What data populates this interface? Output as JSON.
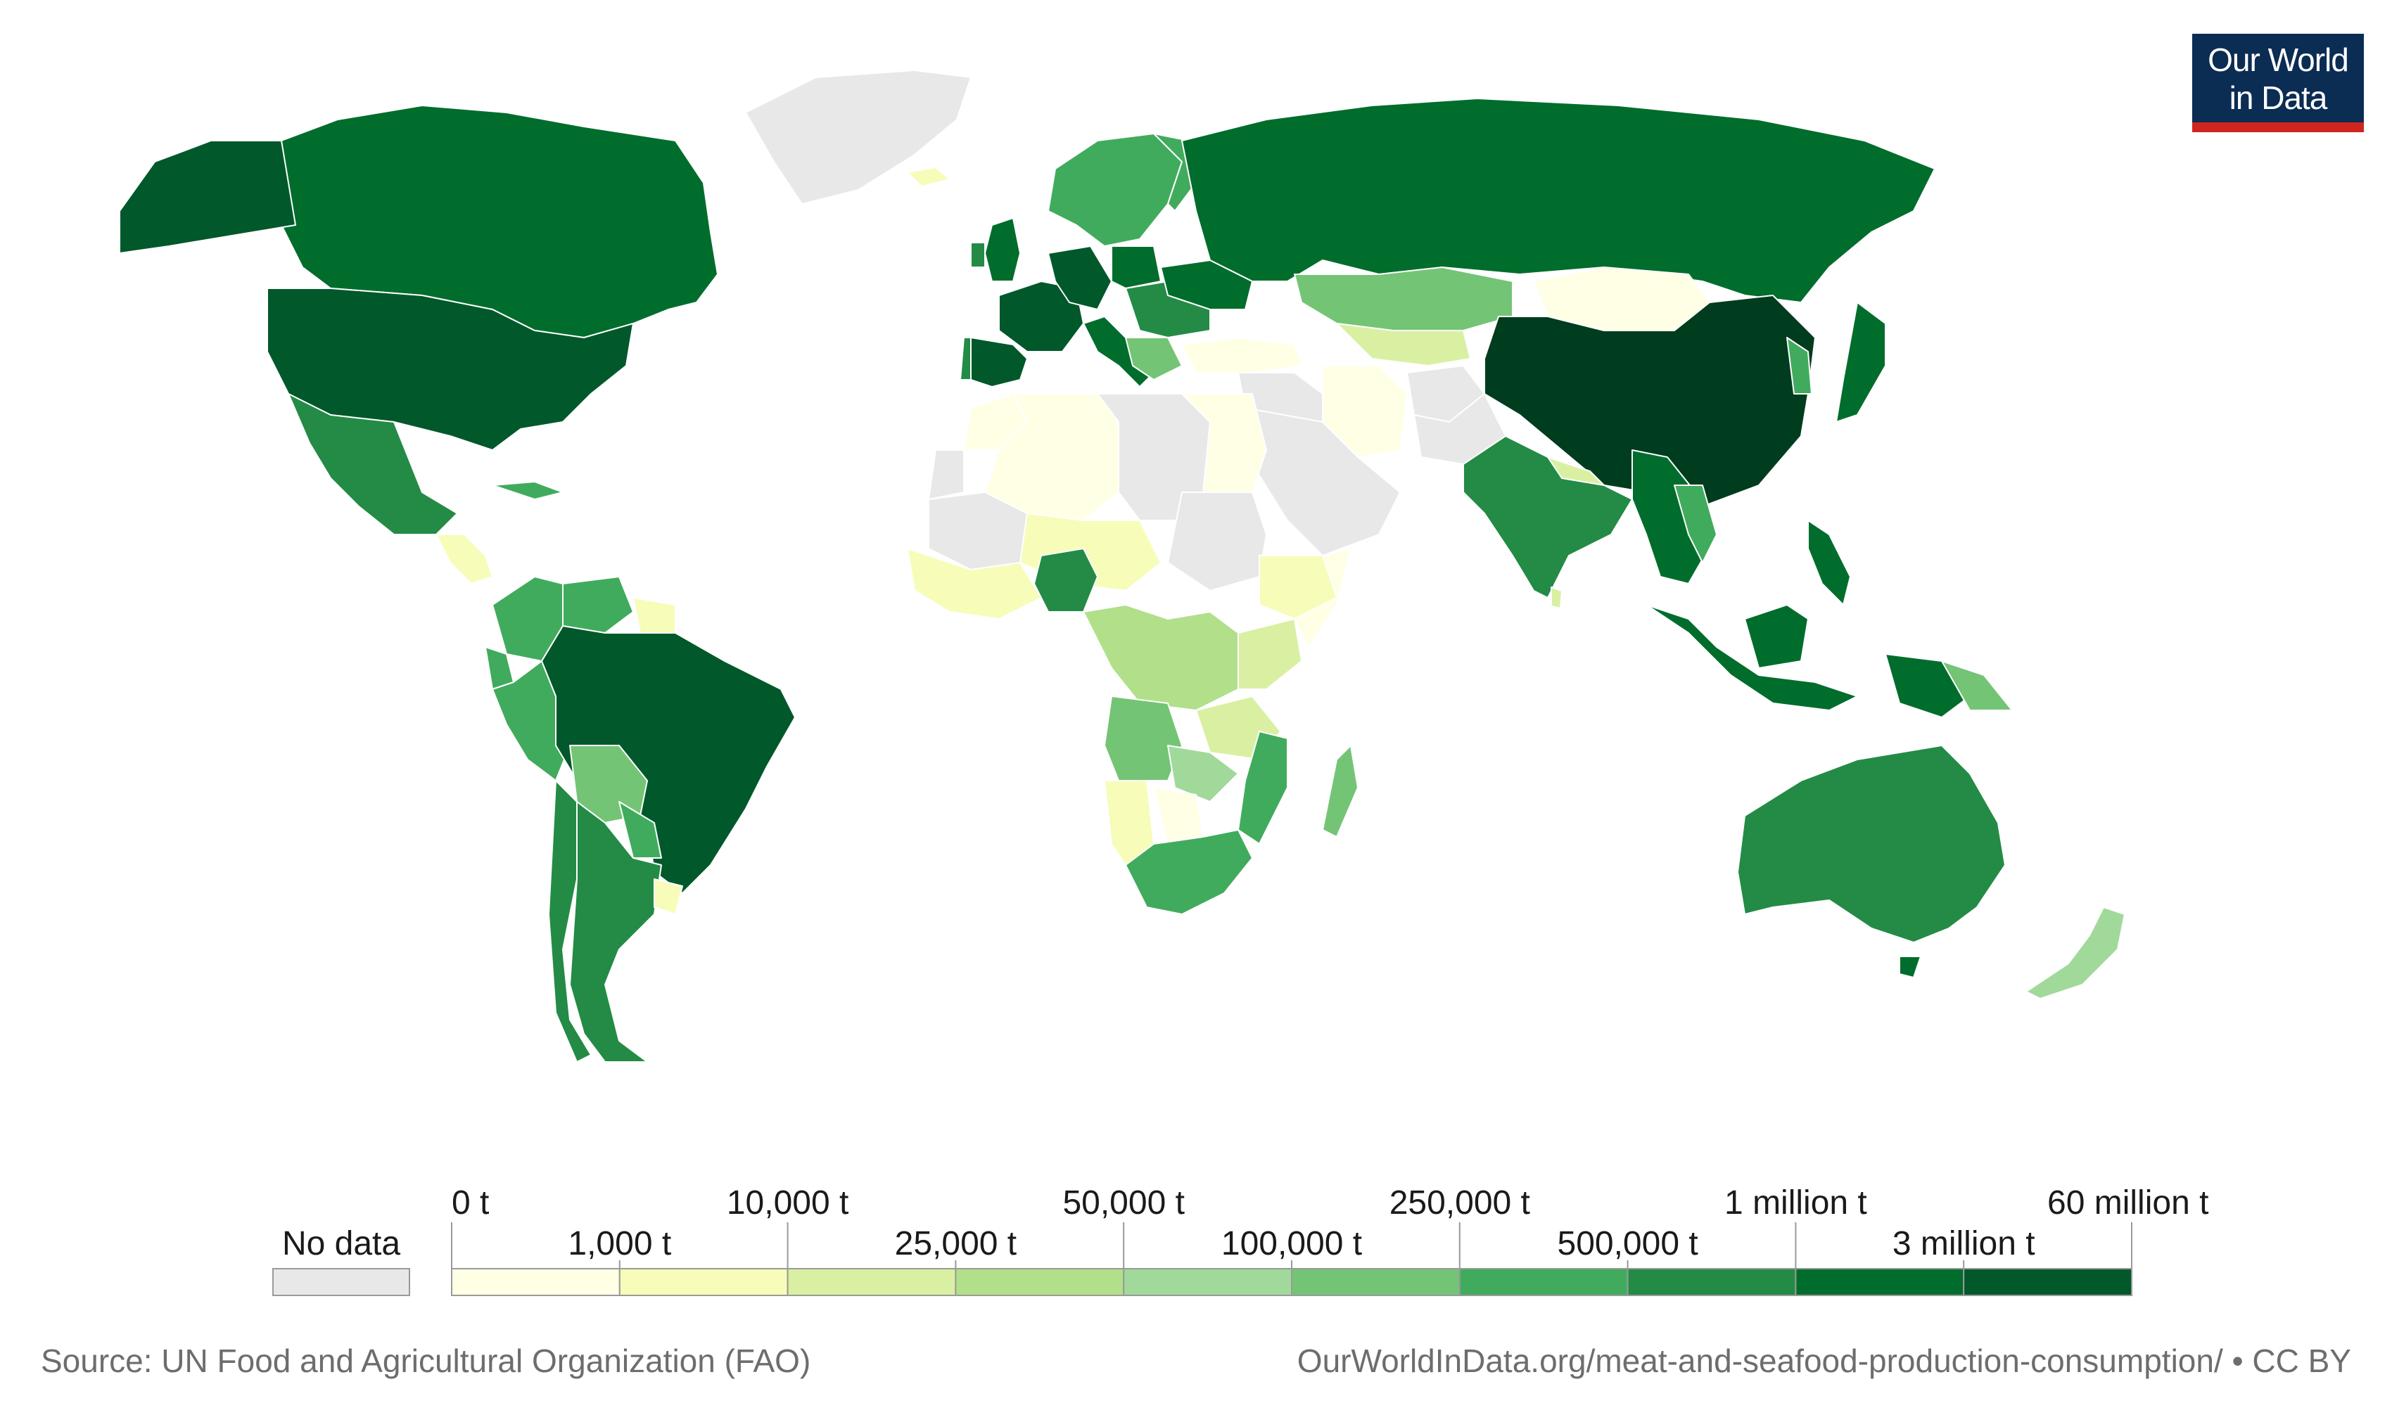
{
  "map": {
    "legend": {
      "no_data_label": "No data",
      "no_data_color": "#e8e8e8",
      "bins": [
        {
          "label": "0 t",
          "color": "#ffffe5"
        },
        {
          "label": "1,000 t",
          "color": "#f7fcb9"
        },
        {
          "label": "10,000 t",
          "color": "#d9f0a3"
        },
        {
          "label": "25,000 t",
          "color": "#b2df8a"
        },
        {
          "label": "50,000 t",
          "color": "#a1d99b"
        },
        {
          "label": "100,000 t",
          "color": "#74c476"
        },
        {
          "label": "250,000 t",
          "color": "#41ab5d"
        },
        {
          "label": "500,000 t",
          "color": "#238b45"
        },
        {
          "label": "1 million t",
          "color": "#006d2c"
        },
        {
          "label": "3 million t",
          "color": "#00582b"
        }
      ],
      "end_label": "60 million t"
    }
  },
  "logo": {
    "line1": "Our World",
    "line2": "in Data",
    "bg_color": "#0b2c53",
    "accent_color": "#ce261e"
  },
  "footer": {
    "source": "Source: UN Food and Agricultural Organization (FAO)",
    "url": "OurWorldInData.org/meat-and-seafood-production-consumption/ • CC BY"
  }
}
